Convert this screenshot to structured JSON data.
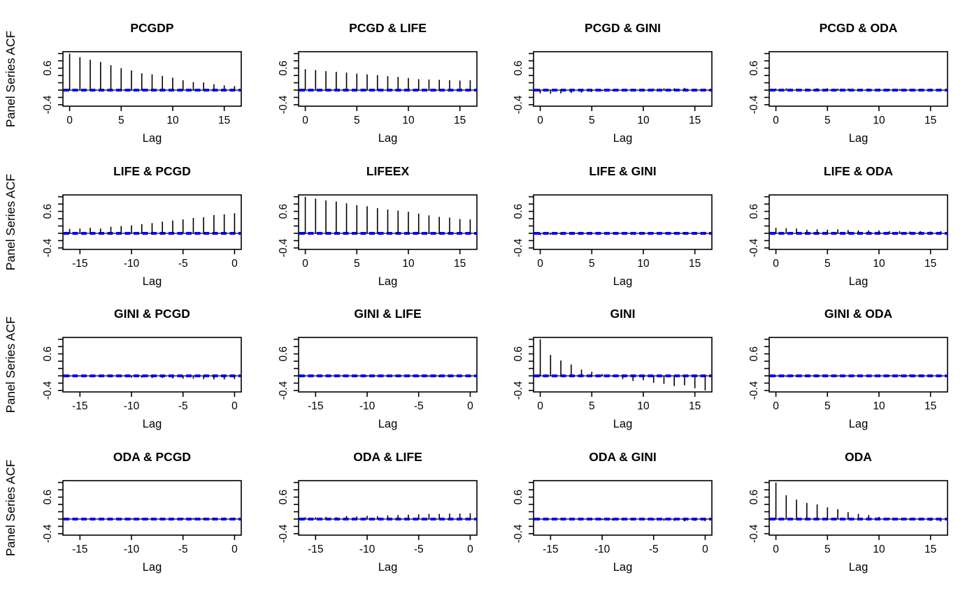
{
  "figure": {
    "xlabel": "Lag",
    "ylabel": "Panel Series ACF",
    "background_color": "#ffffff",
    "axis_color": "#000000",
    "bar_color": "#000000",
    "conf_color": "#0000ff",
    "grid": "off",
    "legend": "none",
    "ylim": [
      -0.44,
      1.05
    ],
    "yticks": [
      -0.4,
      -0.2,
      0.0,
      0.2,
      0.4,
      0.6,
      0.8,
      1.0
    ],
    "ytick_labels": [
      {
        "value": 0.6,
        "label": "0.6"
      },
      {
        "value": -0.4,
        "label": "-0.4"
      }
    ],
    "confidence_level": 0.0
  },
  "chart_data": [
    {
      "type": "bar",
      "title": "PCGDP",
      "row": 0,
      "col": 0,
      "lags": [
        0,
        1,
        2,
        3,
        4,
        5,
        6,
        7,
        8,
        9,
        10,
        11,
        12,
        13,
        14,
        15,
        16
      ],
      "values": [
        1.0,
        0.9,
        0.83,
        0.77,
        0.68,
        0.6,
        0.54,
        0.46,
        0.43,
        0.39,
        0.34,
        0.27,
        0.22,
        0.21,
        0.16,
        0.13,
        0.11
      ],
      "xticks": [
        0,
        5,
        10,
        15
      ]
    },
    {
      "type": "bar",
      "title": "PCGD & LIFE",
      "row": 0,
      "col": 1,
      "lags": [
        0,
        1,
        2,
        3,
        4,
        5,
        6,
        7,
        8,
        9,
        10,
        11,
        12,
        13,
        14,
        15,
        16
      ],
      "values": [
        0.57,
        0.55,
        0.52,
        0.5,
        0.48,
        0.45,
        0.43,
        0.41,
        0.38,
        0.36,
        0.33,
        0.3,
        0.29,
        0.28,
        0.27,
        0.26,
        0.27
      ],
      "xticks": [
        0,
        5,
        10,
        15
      ]
    },
    {
      "type": "bar",
      "title": "PCGD & GINI",
      "row": 0,
      "col": 2,
      "lags": [
        0,
        1,
        2,
        3,
        4,
        5,
        6,
        7,
        8,
        9,
        10,
        11,
        12,
        13,
        14,
        15,
        16
      ],
      "values": [
        -0.09,
        -0.1,
        -0.09,
        -0.08,
        -0.07,
        -0.05,
        -0.03,
        -0.02,
        -0.01,
        0.01,
        0.02,
        0.04,
        0.05,
        0.05,
        0.06,
        0.03,
        0.04
      ],
      "xticks": [
        0,
        5,
        10,
        15
      ]
    },
    {
      "type": "bar",
      "title": "PCGD & ODA",
      "row": 0,
      "col": 3,
      "lags": [
        0,
        1,
        2,
        3,
        4,
        5,
        6,
        7,
        8,
        9,
        10,
        11,
        12,
        13,
        14,
        15,
        16
      ],
      "values": [
        0.04,
        0.05,
        0.04,
        0.04,
        0.05,
        0.05,
        0.04,
        0.04,
        0.03,
        0.04,
        0.04,
        0.03,
        0.03,
        0.03,
        0.02,
        0.03,
        0.03
      ],
      "xticks": [
        0,
        5,
        10,
        15
      ]
    },
    {
      "type": "bar",
      "title": "LIFE & PCGD",
      "row": 1,
      "col": 0,
      "lags": [
        -16,
        -15,
        -14,
        -13,
        -12,
        -11,
        -10,
        -9,
        -8,
        -7,
        -6,
        -5,
        -4,
        -3,
        -2,
        -1,
        0
      ],
      "values": [
        0.12,
        0.13,
        0.15,
        0.13,
        0.18,
        0.2,
        0.22,
        0.25,
        0.28,
        0.32,
        0.35,
        0.38,
        0.42,
        0.44,
        0.5,
        0.52,
        0.55
      ],
      "xticks": [
        -15,
        -10,
        -5,
        0
      ]
    },
    {
      "type": "bar",
      "title": "LIFEEX",
      "row": 1,
      "col": 1,
      "lags": [
        0,
        1,
        2,
        3,
        4,
        5,
        6,
        7,
        8,
        9,
        10,
        11,
        12,
        13,
        14,
        15,
        16
      ],
      "values": [
        1.0,
        0.95,
        0.9,
        0.87,
        0.82,
        0.77,
        0.74,
        0.69,
        0.65,
        0.62,
        0.59,
        0.54,
        0.49,
        0.45,
        0.43,
        0.39,
        0.38
      ],
      "xticks": [
        0,
        5,
        10,
        15
      ]
    },
    {
      "type": "bar",
      "title": "LIFE & GINI",
      "row": 1,
      "col": 2,
      "lags": [
        0,
        1,
        2,
        3,
        4,
        5,
        6,
        7,
        8,
        9,
        10,
        11,
        12,
        13,
        14,
        15,
        16
      ],
      "values": [
        -0.05,
        -0.04,
        -0.04,
        -0.03,
        -0.03,
        -0.02,
        -0.01,
        -0.01,
        0.0,
        0.0,
        0.01,
        0.01,
        0.02,
        0.02,
        0.03,
        0.03,
        0.04
      ],
      "xticks": [
        0,
        5,
        10,
        15
      ]
    },
    {
      "type": "bar",
      "title": "LIFE & ODA",
      "row": 1,
      "col": 3,
      "lags": [
        0,
        1,
        2,
        3,
        4,
        5,
        6,
        7,
        8,
        9,
        10,
        11,
        12,
        13,
        14,
        15,
        16
      ],
      "values": [
        0.15,
        0.14,
        0.13,
        0.1,
        0.11,
        0.1,
        0.11,
        0.09,
        0.08,
        0.08,
        0.08,
        0.06,
        0.06,
        0.05,
        0.06,
        0.05,
        0.06
      ],
      "xticks": [
        0,
        5,
        10,
        15
      ]
    },
    {
      "type": "bar",
      "title": "GINI & PCGD",
      "row": 2,
      "col": 0,
      "lags": [
        -16,
        -15,
        -14,
        -13,
        -12,
        -11,
        -10,
        -9,
        -8,
        -7,
        -6,
        -5,
        -4,
        -3,
        -2,
        -1,
        0
      ],
      "values": [
        -0.02,
        -0.02,
        -0.03,
        -0.03,
        -0.04,
        -0.04,
        -0.05,
        -0.05,
        -0.06,
        -0.06,
        -0.07,
        -0.08,
        -0.08,
        -0.09,
        -0.1,
        -0.1,
        -0.09
      ],
      "xticks": [
        -15,
        -10,
        -5,
        0
      ]
    },
    {
      "type": "bar",
      "title": "GINI & LIFE",
      "row": 2,
      "col": 1,
      "lags": [
        -16,
        -15,
        -14,
        -13,
        -12,
        -11,
        -10,
        -9,
        -8,
        -7,
        -6,
        -5,
        -4,
        -3,
        -2,
        -1,
        0
      ],
      "values": [
        -0.01,
        -0.01,
        -0.01,
        -0.02,
        -0.01,
        -0.02,
        -0.02,
        -0.02,
        -0.02,
        -0.03,
        -0.03,
        -0.03,
        -0.03,
        -0.04,
        -0.04,
        -0.04,
        -0.04
      ],
      "xticks": [
        -15,
        -10,
        -5,
        0
      ]
    },
    {
      "type": "bar",
      "title": "GINI",
      "row": 2,
      "col": 2,
      "lags": [
        0,
        1,
        2,
        3,
        4,
        5,
        6,
        7,
        8,
        9,
        10,
        11,
        12,
        13,
        14,
        15,
        16
      ],
      "values": [
        1.0,
        0.57,
        0.42,
        0.31,
        0.17,
        0.11,
        0.05,
        -0.02,
        -0.09,
        -0.14,
        -0.12,
        -0.19,
        -0.22,
        -0.28,
        -0.26,
        -0.34,
        -0.4
      ],
      "xticks": [
        0,
        5,
        10,
        15
      ]
    },
    {
      "type": "bar",
      "title": "GINI & ODA",
      "row": 2,
      "col": 3,
      "lags": [
        0,
        1,
        2,
        3,
        4,
        5,
        6,
        7,
        8,
        9,
        10,
        11,
        12,
        13,
        14,
        15,
        16
      ],
      "values": [
        -0.02,
        -0.03,
        -0.03,
        -0.02,
        -0.03,
        -0.02,
        -0.02,
        -0.01,
        -0.01,
        0.0,
        0.01,
        0.02,
        0.03,
        0.04,
        0.03,
        0.02,
        0.02
      ],
      "xticks": [
        0,
        5,
        10,
        15
      ]
    },
    {
      "type": "bar",
      "title": "ODA & PCGD",
      "row": 3,
      "col": 0,
      "lags": [
        -16,
        -15,
        -14,
        -13,
        -12,
        -11,
        -10,
        -9,
        -8,
        -7,
        -6,
        -5,
        -4,
        -3,
        -2,
        -1,
        0
      ],
      "values": [
        0.01,
        0.01,
        0.01,
        0.02,
        0.01,
        0.02,
        0.02,
        0.02,
        0.02,
        0.02,
        0.03,
        0.03,
        0.03,
        0.03,
        0.04,
        0.04,
        0.04
      ],
      "xticks": [
        -15,
        -10,
        -5,
        0
      ]
    },
    {
      "type": "bar",
      "title": "ODA & LIFE",
      "row": 3,
      "col": 1,
      "lags": [
        -16,
        -15,
        -14,
        -13,
        -12,
        -11,
        -10,
        -9,
        -8,
        -7,
        -6,
        -5,
        -4,
        -3,
        -2,
        -1,
        0
      ],
      "values": [
        0.05,
        0.05,
        0.06,
        0.05,
        0.08,
        0.07,
        0.09,
        0.08,
        0.1,
        0.11,
        0.12,
        0.13,
        0.14,
        0.14,
        0.15,
        0.15,
        0.16
      ],
      "xticks": [
        -15,
        -10,
        -5,
        0
      ]
    },
    {
      "type": "bar",
      "title": "ODA & GINI",
      "row": 3,
      "col": 2,
      "lags": [
        -16,
        -15,
        -14,
        -13,
        -12,
        -11,
        -10,
        -9,
        -8,
        -7,
        -6,
        -5,
        -4,
        -3,
        -2,
        -1,
        0
      ],
      "values": [
        0.01,
        -0.01,
        -0.01,
        0.0,
        0.01,
        -0.02,
        -0.03,
        -0.04,
        -0.04,
        -0.03,
        -0.02,
        -0.04,
        -0.05,
        -0.05,
        -0.06,
        -0.05,
        -0.06
      ],
      "xticks": [
        -15,
        -10,
        -5,
        0
      ]
    },
    {
      "type": "bar",
      "title": "ODA",
      "row": 3,
      "col": 3,
      "lags": [
        0,
        1,
        2,
        3,
        4,
        5,
        6,
        7,
        8,
        9,
        10,
        11,
        12,
        13,
        14,
        15,
        16
      ],
      "values": [
        1.0,
        0.65,
        0.53,
        0.44,
        0.4,
        0.32,
        0.27,
        0.19,
        0.14,
        0.11,
        0.06,
        0.03,
        -0.02,
        -0.03,
        -0.04,
        -0.05,
        -0.07
      ],
      "xticks": [
        0,
        5,
        10,
        15
      ]
    }
  ]
}
